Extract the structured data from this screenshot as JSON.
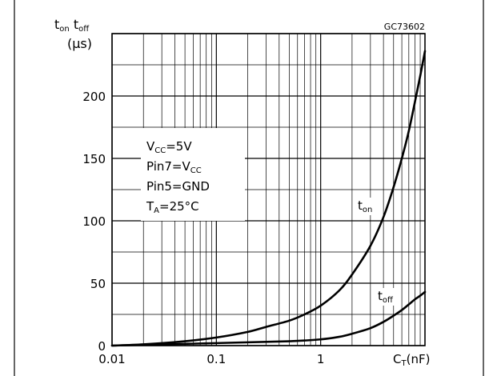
{
  "chart_data": {
    "type": "line",
    "figure_code": "GC73602",
    "xscale": "log",
    "xlim": [
      0.01,
      10
    ],
    "ylim": [
      0,
      250
    ],
    "grid": true,
    "ylabel": {
      "main_on": "t",
      "sub_on": "on",
      "main_off": "t",
      "sub_off": "off",
      "unit": "(μs)"
    },
    "xlabel": {
      "main": "C",
      "sub": "T",
      "unit": "(nF)"
    },
    "x_ticks": [
      {
        "value": 0.01,
        "label": "0.01"
      },
      {
        "value": 0.1,
        "label": "0.1"
      },
      {
        "value": 1,
        "label": "1"
      }
    ],
    "y_ticks": [
      {
        "value": 0,
        "label": "0"
      },
      {
        "value": 50,
        "label": "50"
      },
      {
        "value": 100,
        "label": "100"
      },
      {
        "value": 150,
        "label": "150"
      },
      {
        "value": 200,
        "label": "200"
      }
    ],
    "conditions": [
      {
        "main": "V",
        "sub": "CC",
        "rest": "=5V",
        "rest_sub": ""
      },
      {
        "main": "Pin7=V",
        "sub": "",
        "rest": "",
        "rest_sub": "CC"
      },
      {
        "main": "Pin5=GND",
        "sub": "",
        "rest": "",
        "rest_sub": ""
      },
      {
        "main": "T",
        "sub": "A",
        "rest": "=25°C",
        "rest_sub": ""
      }
    ],
    "series": [
      {
        "name": "t_on",
        "label_main": "t",
        "label_sub": "on",
        "color": "#000000",
        "points": [
          [
            0.01,
            0
          ],
          [
            0.02,
            1
          ],
          [
            0.05,
            3.5
          ],
          [
            0.1,
            6.5
          ],
          [
            0.2,
            11
          ],
          [
            0.3,
            15
          ],
          [
            0.5,
            20
          ],
          [
            0.7,
            25
          ],
          [
            1,
            32
          ],
          [
            1.5,
            44
          ],
          [
            2,
            57
          ],
          [
            3,
            80
          ],
          [
            4,
            103
          ],
          [
            5,
            127
          ],
          [
            6,
            150
          ],
          [
            7,
            172
          ],
          [
            8,
            195
          ],
          [
            9,
            216
          ],
          [
            10,
            236
          ]
        ]
      },
      {
        "name": "t_off",
        "label_main": "t",
        "label_sub": "off",
        "color": "#000000",
        "points": [
          [
            0.01,
            0
          ],
          [
            0.1,
            2
          ],
          [
            0.5,
            3.5
          ],
          [
            1,
            5
          ],
          [
            1.5,
            7
          ],
          [
            2,
            9.5
          ],
          [
            3,
            14
          ],
          [
            4,
            19
          ],
          [
            5,
            24
          ],
          [
            6,
            28.5
          ],
          [
            7,
            33
          ],
          [
            8,
            37
          ],
          [
            9,
            40
          ],
          [
            10,
            43
          ]
        ]
      }
    ]
  }
}
